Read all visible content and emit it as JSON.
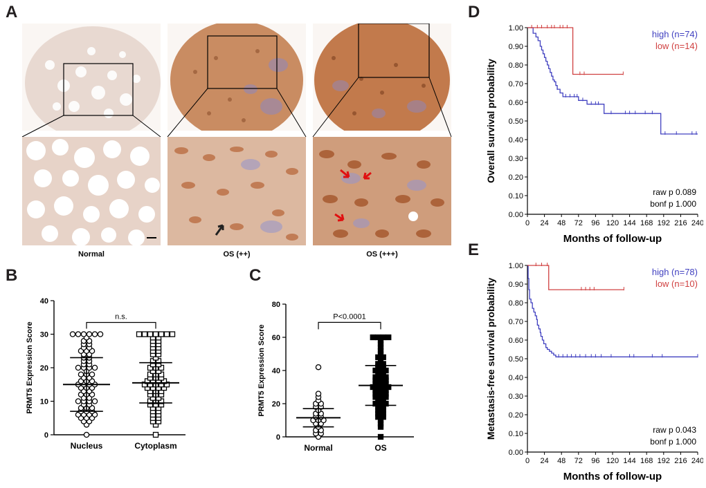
{
  "panels": {
    "A": {
      "letter": "A",
      "captions": [
        "Normal",
        "OS (++)",
        "OS (+++)"
      ]
    },
    "B": {
      "letter": "B",
      "significance": "n.s.",
      "chart_data": {
        "type": "scatter",
        "ylabel": "PRMT5 Expression Score",
        "ylim": [
          0,
          40
        ],
        "yticks": [
          0,
          10,
          20,
          30,
          40
        ],
        "categories": [
          "Nucleus",
          "Cytoplasm"
        ],
        "groups": [
          {
            "name": "Nucleus",
            "marker": "circle",
            "mean": 15.0,
            "sd_low": 7.0,
            "sd_high": 23.0,
            "values": [
              0,
              3,
              4,
              4,
              5,
              5,
              5,
              6,
              6,
              6,
              6,
              7,
              7,
              7,
              8,
              8,
              8,
              9,
              9,
              10,
              10,
              10,
              10,
              11,
              11,
              12,
              12,
              12,
              13,
              13,
              14,
              14,
              14,
              15,
              15,
              15,
              15,
              16,
              16,
              16,
              17,
              17,
              18,
              18,
              18,
              19,
              20,
              20,
              20,
              20,
              21,
              21,
              22,
              22,
              23,
              23,
              24,
              24,
              25,
              25,
              25,
              26,
              26,
              27,
              27,
              28,
              28,
              29,
              30,
              30,
              30,
              30,
              30,
              30
            ]
          },
          {
            "name": "Cytoplasm",
            "marker": "square",
            "mean": 15.5,
            "sd_low": 9.5,
            "sd_high": 21.5,
            "values": [
              0,
              3,
              4,
              4,
              5,
              5,
              6,
              6,
              7,
              7,
              8,
              8,
              9,
              9,
              9,
              10,
              10,
              10,
              11,
              11,
              12,
              12,
              12,
              13,
              13,
              13,
              14,
              14,
              14,
              14,
              15,
              15,
              15,
              15,
              15,
              16,
              16,
              16,
              16,
              17,
              17,
              17,
              18,
              18,
              18,
              19,
              19,
              20,
              20,
              20,
              21,
              21,
              22,
              22,
              23,
              24,
              24,
              25,
              25,
              26,
              26,
              27,
              27,
              28,
              28,
              29,
              29,
              30,
              30,
              30,
              30,
              30,
              30,
              30
            ]
          }
        ]
      }
    },
    "C": {
      "letter": "C",
      "significance": "P<0.0001",
      "chart_data": {
        "type": "scatter",
        "ylabel": "PRMT5 Expression Score",
        "ylim": [
          0,
          80
        ],
        "yticks": [
          0,
          20,
          40,
          60,
          80
        ],
        "categories": [
          "Normal",
          "OS"
        ],
        "groups": [
          {
            "name": "Normal",
            "marker": "circle",
            "mean": 11.5,
            "sd_low": 6.0,
            "sd_high": 17.0,
            "values": [
              0,
              2,
              2,
              4,
              4,
              6,
              8,
              8,
              10,
              10,
              10,
              12,
              12,
              14,
              14,
              16,
              18,
              18,
              20,
              20,
              22,
              24,
              26,
              42
            ]
          },
          {
            "name": "OS",
            "marker": "square",
            "mean": 31.0,
            "sd_low": 19.0,
            "sd_high": 43.0,
            "values": [
              0,
              6,
              8,
              10,
              12,
              12,
              14,
              14,
              16,
              16,
              18,
              18,
              20,
              20,
              20,
              22,
              22,
              24,
              24,
              24,
              26,
              26,
              26,
              28,
              28,
              28,
              30,
              30,
              30,
              30,
              32,
              32,
              32,
              34,
              34,
              34,
              36,
              36,
              36,
              38,
              38,
              40,
              40,
              40,
              42,
              42,
              44,
              44,
              46,
              48,
              48,
              50,
              52,
              54,
              56,
              58,
              60,
              60,
              60,
              60
            ]
          }
        ]
      }
    },
    "D": {
      "letter": "D",
      "stats": {
        "raw": "raw p 0.089",
        "bonf": "bonf p 1.000"
      },
      "chart_data": {
        "type": "line",
        "xlabel": "Months of  follow-up",
        "ylabel": "Overall survival probability",
        "xlim": [
          0,
          240
        ],
        "ylim": [
          0,
          1
        ],
        "xticks": [
          0,
          24,
          48,
          72,
          96,
          120,
          144,
          168,
          192,
          216,
          240
        ],
        "yticks": [
          "0.00",
          "0.10",
          "0.20",
          "0.30",
          "0.40",
          "0.50",
          "0.60",
          "0.70",
          "0.80",
          "0.90",
          "1.00"
        ],
        "series": [
          {
            "name": "high (n=74)",
            "color": "#4040c0",
            "steps": [
              [
                0,
                1.0
              ],
              [
                8,
                0.97
              ],
              [
                12,
                0.95
              ],
              [
                15,
                0.93
              ],
              [
                18,
                0.9
              ],
              [
                20,
                0.88
              ],
              [
                22,
                0.86
              ],
              [
                24,
                0.84
              ],
              [
                26,
                0.82
              ],
              [
                28,
                0.8
              ],
              [
                30,
                0.78
              ],
              [
                32,
                0.76
              ],
              [
                34,
                0.74
              ],
              [
                36,
                0.72
              ],
              [
                38,
                0.71
              ],
              [
                40,
                0.69
              ],
              [
                42,
                0.67
              ],
              [
                46,
                0.65
              ],
              [
                50,
                0.63
              ],
              [
                72,
                0.61
              ],
              [
                84,
                0.59
              ],
              [
                108,
                0.54
              ],
              [
                188,
                0.43
              ],
              [
                240,
                0.43
              ]
            ],
            "censor": [
              42,
              54,
              60,
              66,
              70,
              78,
              90,
              96,
              100,
              118,
              138,
              144,
              152,
              166,
              176,
              194,
              210,
              232,
              238
            ]
          },
          {
            "name": "low (n=14)",
            "color": "#d04040",
            "steps": [
              [
                0,
                1.0
              ],
              [
                64,
                0.75
              ],
              [
                135,
                0.75
              ]
            ],
            "censor": [
              6,
              14,
              20,
              28,
              34,
              38,
              46,
              50,
              56,
              74,
              80,
              135
            ]
          }
        ]
      }
    },
    "E": {
      "letter": "E",
      "stats": {
        "raw": "raw p 0.043",
        "bonf": "bonf p 1.000"
      },
      "chart_data": {
        "type": "line",
        "xlabel": "Months of  follow-up",
        "ylabel": "Metastasis-free survival probability",
        "xlim": [
          0,
          240
        ],
        "ylim": [
          0,
          1
        ],
        "xticks": [
          0,
          24,
          48,
          72,
          96,
          120,
          144,
          168,
          192,
          216,
          240
        ],
        "yticks": [
          "0.00",
          "0.10",
          "0.20",
          "0.30",
          "0.40",
          "0.50",
          "0.60",
          "0.70",
          "0.80",
          "0.90",
          "1.00"
        ],
        "series": [
          {
            "name": "high (n=78)",
            "color": "#4040c0",
            "steps": [
              [
                0,
                1.0
              ],
              [
                1,
                0.93
              ],
              [
                2,
                0.87
              ],
              [
                3,
                0.82
              ],
              [
                5,
                0.8
              ],
              [
                7,
                0.77
              ],
              [
                9,
                0.75
              ],
              [
                11,
                0.73
              ],
              [
                13,
                0.71
              ],
              [
                14,
                0.68
              ],
              [
                16,
                0.66
              ],
              [
                18,
                0.64
              ],
              [
                19,
                0.62
              ],
              [
                21,
                0.6
              ],
              [
                23,
                0.58
              ],
              [
                26,
                0.56
              ],
              [
                28,
                0.55
              ],
              [
                31,
                0.54
              ],
              [
                34,
                0.53
              ],
              [
                37,
                0.52
              ],
              [
                40,
                0.51
              ],
              [
                240,
                0.51
              ]
            ],
            "censor": [
              44,
              50,
              56,
              62,
              68,
              74,
              82,
              90,
              96,
              104,
              118,
              144,
              150,
              176,
              190,
              240
            ]
          },
          {
            "name": "low (n=10)",
            "color": "#d04040",
            "steps": [
              [
                0,
                1.0
              ],
              [
                30,
                0.87
              ],
              [
                136,
                0.87
              ]
            ],
            "censor": [
              12,
              20,
              28,
              76,
              82,
              88,
              94,
              136
            ]
          }
        ]
      }
    }
  }
}
